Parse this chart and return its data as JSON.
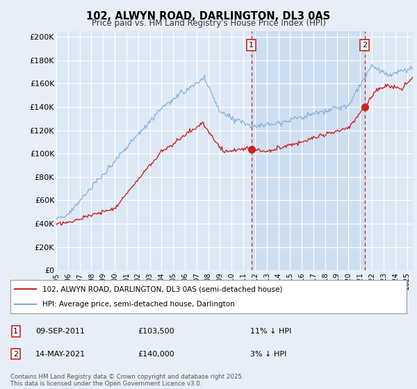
{
  "title": "102, ALWYN ROAD, DARLINGTON, DL3 0AS",
  "subtitle": "Price paid vs. HM Land Registry's House Price Index (HPI)",
  "ylabel_ticks": [
    "£0",
    "£20K",
    "£40K",
    "£60K",
    "£80K",
    "£100K",
    "£120K",
    "£140K",
    "£160K",
    "£180K",
    "£200K"
  ],
  "ytick_values": [
    0,
    20000,
    40000,
    60000,
    80000,
    100000,
    120000,
    140000,
    160000,
    180000,
    200000
  ],
  "ylim": [
    0,
    205000
  ],
  "xlim_start": 1995.0,
  "xlim_end": 2025.5,
  "xtick_years": [
    1995,
    1996,
    1997,
    1998,
    1999,
    2000,
    2001,
    2002,
    2003,
    2004,
    2005,
    2006,
    2007,
    2008,
    2009,
    2010,
    2011,
    2012,
    2013,
    2014,
    2015,
    2016,
    2017,
    2018,
    2019,
    2020,
    2021,
    2022,
    2023,
    2024,
    2025
  ],
  "hpi_color": "#7aadd4",
  "price_color": "#cc2222",
  "background_color": "#e8eef8",
  "plot_bg_color": "#dde8f5",
  "grid_color": "#ffffff",
  "shade_color": "#c8daf0",
  "marker1_x": 2011.69,
  "marker1_y": 103500,
  "marker2_x": 2021.37,
  "marker2_y": 140000,
  "annotation1_date": "09-SEP-2011",
  "annotation1_price": "£103,500",
  "annotation1_hpi": "11% ↓ HPI",
  "annotation2_date": "14-MAY-2021",
  "annotation2_price": "£140,000",
  "annotation2_hpi": "3% ↓ HPI",
  "legend_line1": "102, ALWYN ROAD, DARLINGTON, DL3 0AS (semi-detached house)",
  "legend_line2": "HPI: Average price, semi-detached house, Darlington",
  "footer": "Contains HM Land Registry data © Crown copyright and database right 2025.\nThis data is licensed under the Open Government Licence v3.0."
}
